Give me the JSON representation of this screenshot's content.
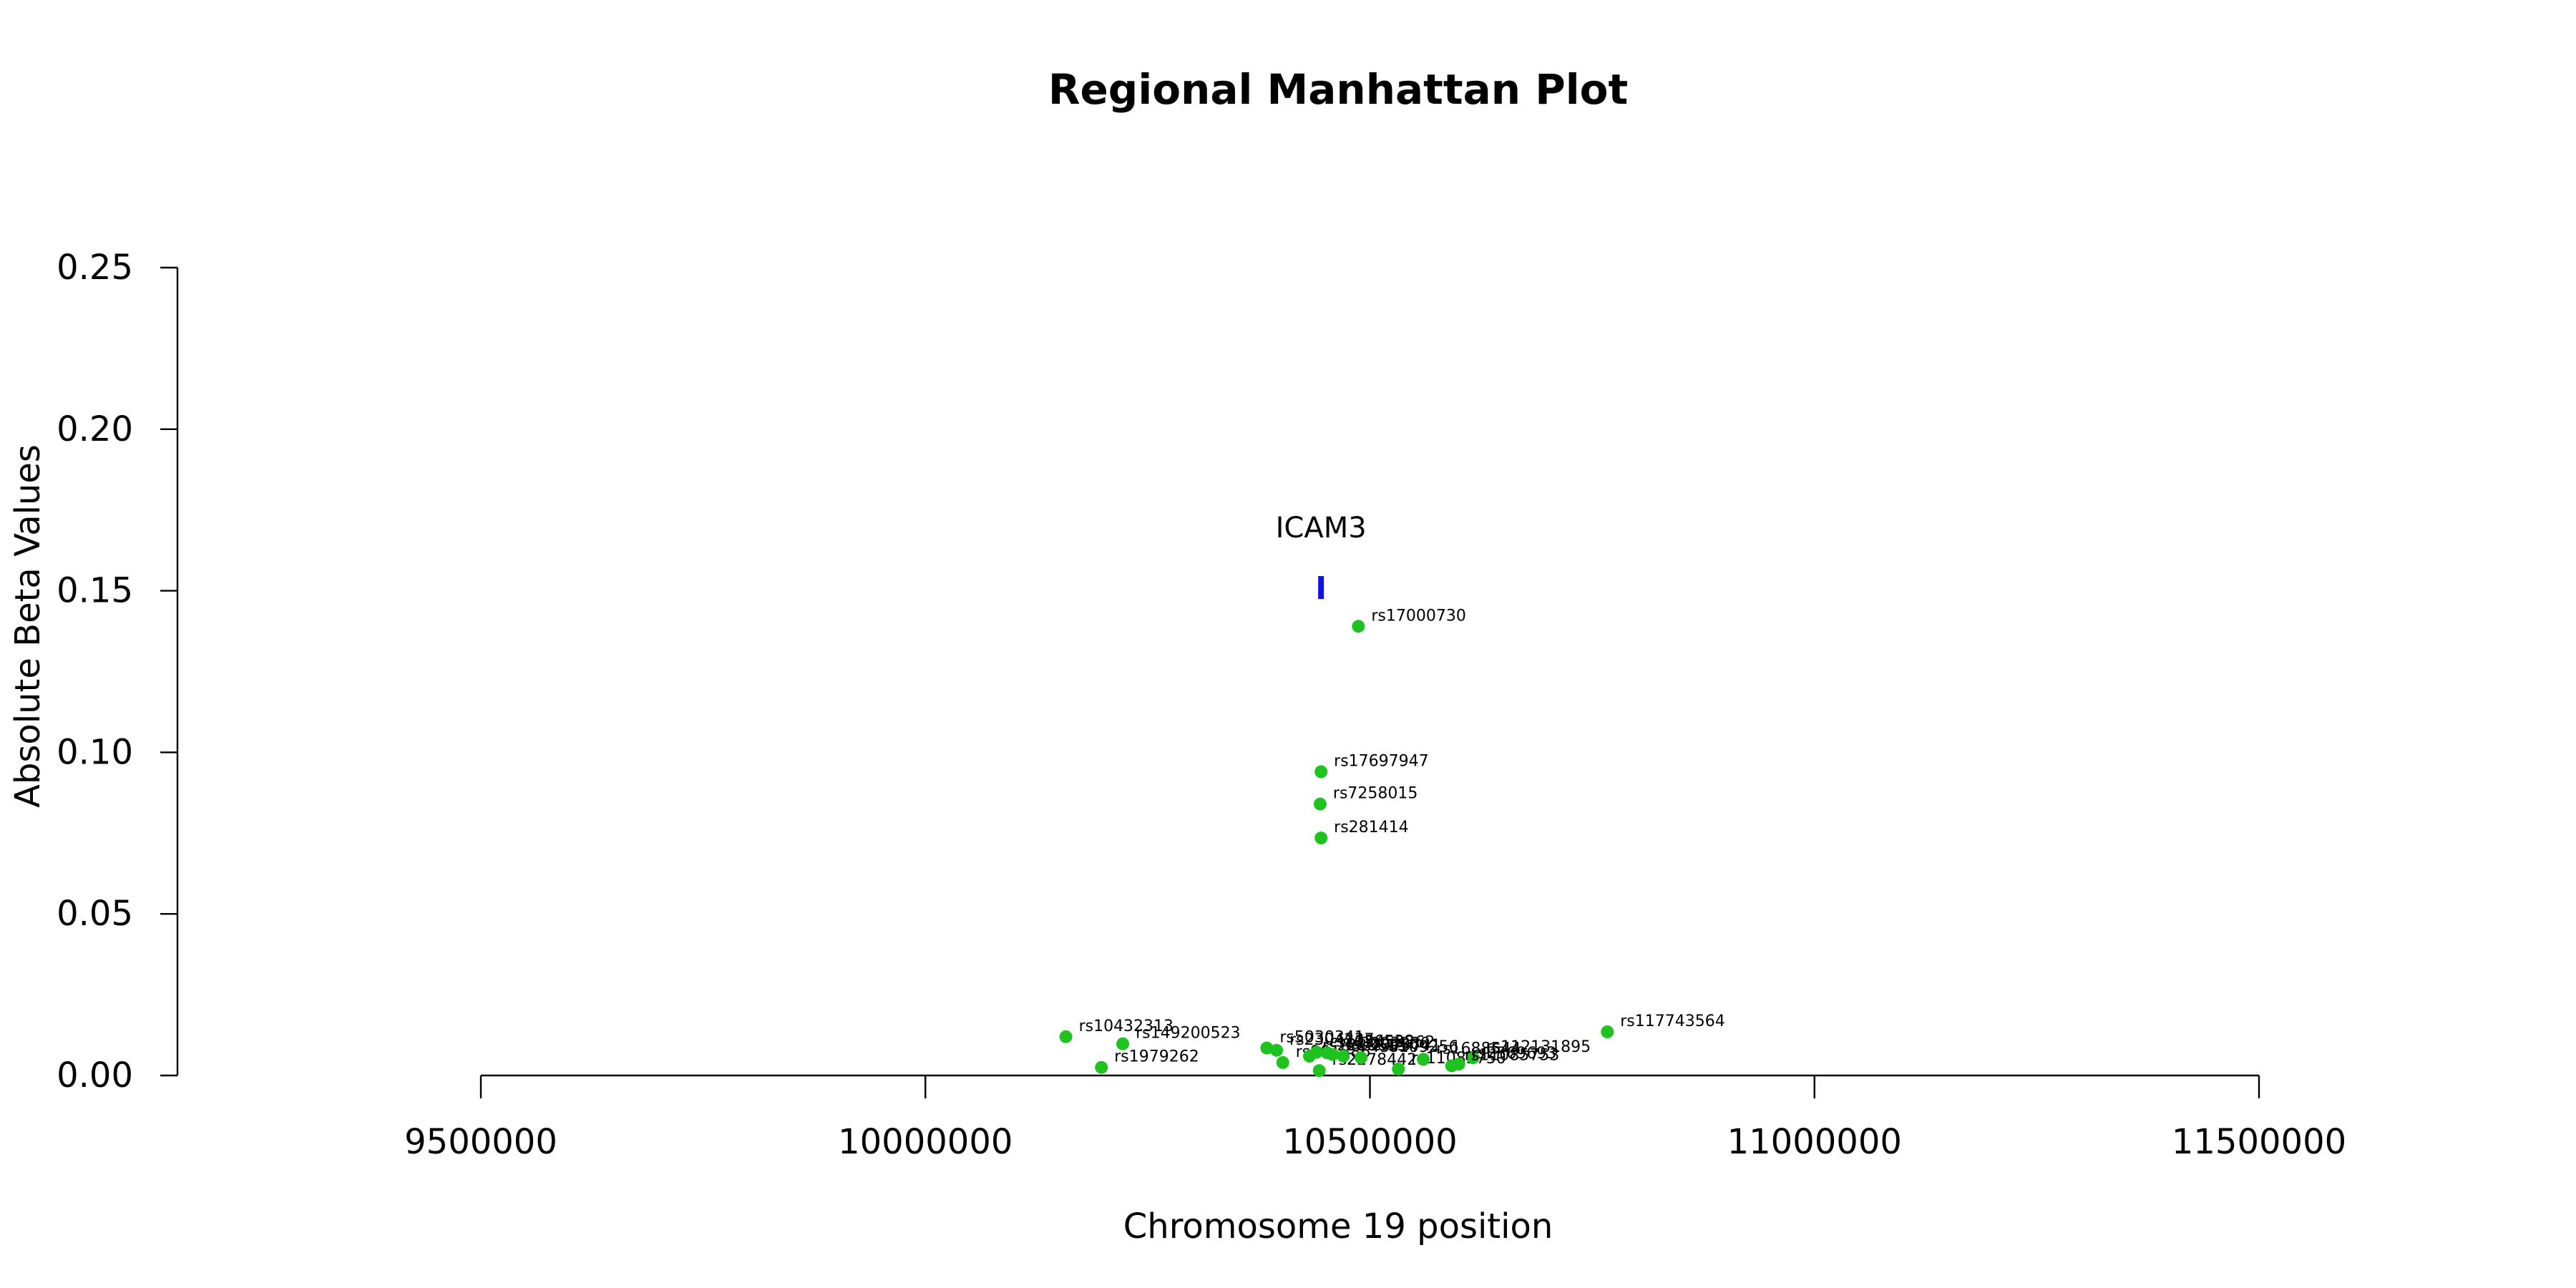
{
  "chart_data": {
    "type": "scatter",
    "title": "Regional Manhattan Plot",
    "xlabel": "Chromosome 19 position",
    "ylabel": "Absolute Beta Values",
    "xlim": [
      9500000,
      11500000
    ],
    "ylim": [
      0,
      0.25
    ],
    "x_ticks": [
      9500000,
      10000000,
      10500000,
      11000000,
      11500000
    ],
    "x_tick_labels": [
      "9500000",
      "10000000",
      "10500000",
      "11000000",
      "11500000"
    ],
    "y_ticks": [
      0,
      0.05,
      0.1,
      0.15,
      0.2,
      0.25
    ],
    "y_tick_labels": [
      "0.00",
      "0.05",
      "0.10",
      "0.15",
      "0.20",
      "0.25"
    ],
    "point_color": "#1fc21f",
    "gene_color": "#1010e0",
    "gene": {
      "name": "ICAM3",
      "start": 10442000,
      "end": 10448000,
      "beta": 0.151
    },
    "points": [
      {
        "snp": "rs17000730",
        "x": 10487000,
        "y": 0.139
      },
      {
        "snp": "rs17697947",
        "x": 10445000,
        "y": 0.094
      },
      {
        "snp": "rs7258015",
        "x": 10444000,
        "y": 0.084
      },
      {
        "snp": "rs281414",
        "x": 10445000,
        "y": 0.0735
      },
      {
        "snp": "rs10432313",
        "x": 10158000,
        "y": 0.012
      },
      {
        "snp": "rs149200523",
        "x": 10222000,
        "y": 0.0098
      },
      {
        "snp": "rs1979262",
        "x": 10198000,
        "y": 0.0025
      },
      {
        "snp": "rs117743564",
        "x": 10767000,
        "y": 0.0135
      },
      {
        "snp": "rs5030341",
        "x": 10384000,
        "y": 0.0085
      },
      {
        "snp": "rs2304237",
        "x": 10395000,
        "y": 0.0078
      },
      {
        "snp": "rs901886",
        "x": 10402000,
        "y": 0.004
      },
      {
        "snp": "rs2228615",
        "x": 10432000,
        "y": 0.006
      },
      {
        "snp": "rs1056538",
        "x": 10440000,
        "y": 0.0072
      },
      {
        "snp": "rs2278442",
        "x": 10443000,
        "y": 0.0015
      },
      {
        "snp": "rs12459262",
        "x": 10452000,
        "y": 0.007
      },
      {
        "snp": "rs3093030",
        "x": 10458000,
        "y": 0.0065
      },
      {
        "snp": "rs2075741",
        "x": 10470000,
        "y": 0.006
      },
      {
        "snp": "rs8109256",
        "x": 10490000,
        "y": 0.0055
      },
      {
        "snp": "rs11085750",
        "x": 10532000,
        "y": 0.002
      },
      {
        "snp": "rs1688544",
        "x": 10560000,
        "y": 0.005
      },
      {
        "snp": "rs112131895",
        "x": 10616000,
        "y": 0.0055
      },
      {
        "snp": "rs2569693",
        "x": 10600000,
        "y": 0.0035
      },
      {
        "snp": "rs11085753",
        "x": 10592000,
        "y": 0.003
      }
    ]
  }
}
